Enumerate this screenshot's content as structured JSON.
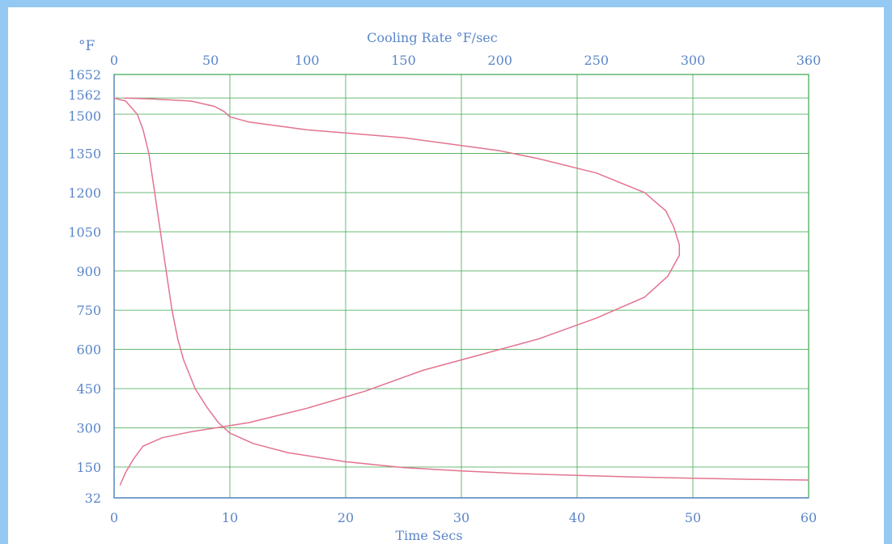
{
  "chart_data": {
    "type": "line",
    "title": "",
    "xlabel": "Time  Secs",
    "x2label": "Cooling Rate  °F/sec",
    "ylabel": "°F",
    "xlim": [
      0,
      60
    ],
    "x2lim": [
      0,
      360
    ],
    "ylim": [
      32,
      1652
    ],
    "x_ticks": [
      0,
      10,
      20,
      30,
      40,
      50,
      60
    ],
    "x2_ticks": [
      0,
      50,
      100,
      150,
      200,
      250,
      300,
      360
    ],
    "y_ticks": [
      32,
      150,
      300,
      450,
      600,
      750,
      900,
      1050,
      1200,
      1350,
      1500,
      1562,
      1652
    ],
    "grid": true,
    "line_color": "#e3738f",
    "grid_color": "#3aa64a",
    "series": [
      {
        "axis": "time",
        "points": [
          [
            0,
            1562
          ],
          [
            1,
            1550
          ],
          [
            2,
            1500
          ],
          [
            2.5,
            1440
          ],
          [
            3,
            1350
          ],
          [
            3.5,
            1200
          ],
          [
            4,
            1050
          ],
          [
            4.5,
            900
          ],
          [
            5,
            750
          ],
          [
            5.5,
            640
          ],
          [
            6,
            560
          ],
          [
            7,
            450
          ],
          [
            8,
            380
          ],
          [
            9,
            320
          ],
          [
            10,
            280
          ],
          [
            12,
            240
          ],
          [
            15,
            205
          ],
          [
            20,
            170
          ],
          [
            25,
            148
          ],
          [
            30,
            135
          ],
          [
            35,
            125
          ],
          [
            40,
            118
          ],
          [
            45,
            112
          ],
          [
            50,
            107
          ],
          [
            55,
            103
          ],
          [
            60,
            100
          ]
        ]
      },
      {
        "axis": "cooling_rate",
        "points": [
          [
            3,
            80
          ],
          [
            6,
            130
          ],
          [
            10,
            180
          ],
          [
            15,
            230
          ],
          [
            25,
            262
          ],
          [
            40,
            285
          ],
          [
            70,
            320
          ],
          [
            100,
            375
          ],
          [
            130,
            440
          ],
          [
            160,
            520
          ],
          [
            190,
            580
          ],
          [
            220,
            640
          ],
          [
            250,
            720
          ],
          [
            275,
            800
          ],
          [
            287,
            880
          ],
          [
            293,
            960
          ],
          [
            293,
            1000
          ],
          [
            290,
            1070
          ],
          [
            286,
            1130
          ],
          [
            275,
            1200
          ],
          [
            250,
            1275
          ],
          [
            220,
            1330
          ],
          [
            200,
            1360
          ],
          [
            150,
            1410
          ],
          [
            100,
            1440
          ],
          [
            70,
            1470
          ],
          [
            60,
            1490
          ],
          [
            57,
            1510
          ],
          [
            52,
            1530
          ],
          [
            40,
            1550
          ],
          [
            20,
            1558
          ],
          [
            5,
            1562
          ]
        ]
      }
    ]
  }
}
